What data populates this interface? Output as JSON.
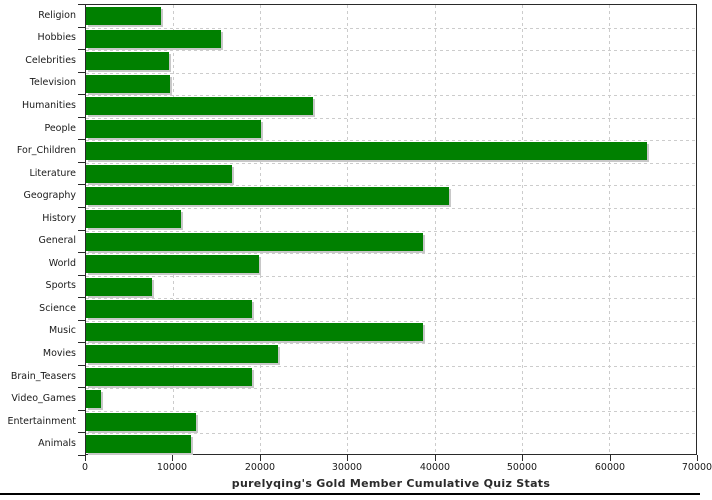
{
  "chart_data": {
    "type": "bar",
    "orientation": "horizontal",
    "title": "purelyqing's Gold Member Cumulative Quiz Stats",
    "categories": [
      "Religion",
      "Hobbies",
      "Celebrities",
      "Television",
      "Humanities",
      "People",
      "For_Children",
      "Literature",
      "Geography",
      "History",
      "General",
      "World",
      "Sports",
      "Science",
      "Music",
      "Movies",
      "Brain_Teasers",
      "Video_Games",
      "Entertainment",
      "Animals"
    ],
    "values": [
      8600,
      15500,
      9500,
      9600,
      26000,
      20100,
      64400,
      16800,
      41700,
      10900,
      38700,
      19900,
      7600,
      19000,
      38700,
      22000,
      19100,
      1700,
      12600,
      12000
    ],
    "xlabel": "",
    "ylabel": "",
    "xlim": [
      0,
      70000
    ],
    "xticks": [
      0,
      10000,
      20000,
      30000,
      40000,
      50000,
      60000,
      70000
    ],
    "xtick_labels": [
      "0",
      "10000",
      "20000",
      "30000",
      "40000",
      "50000",
      "60000",
      "70000"
    ],
    "grid": "dashed",
    "legend": "none",
    "colors": {
      "bar": "#008000",
      "bar_shadow": "#c8c8c8",
      "gridline": "#cccccc",
      "axis": "#2a2a2a",
      "text": "#1a1a1a",
      "background": "#ffffff"
    }
  }
}
